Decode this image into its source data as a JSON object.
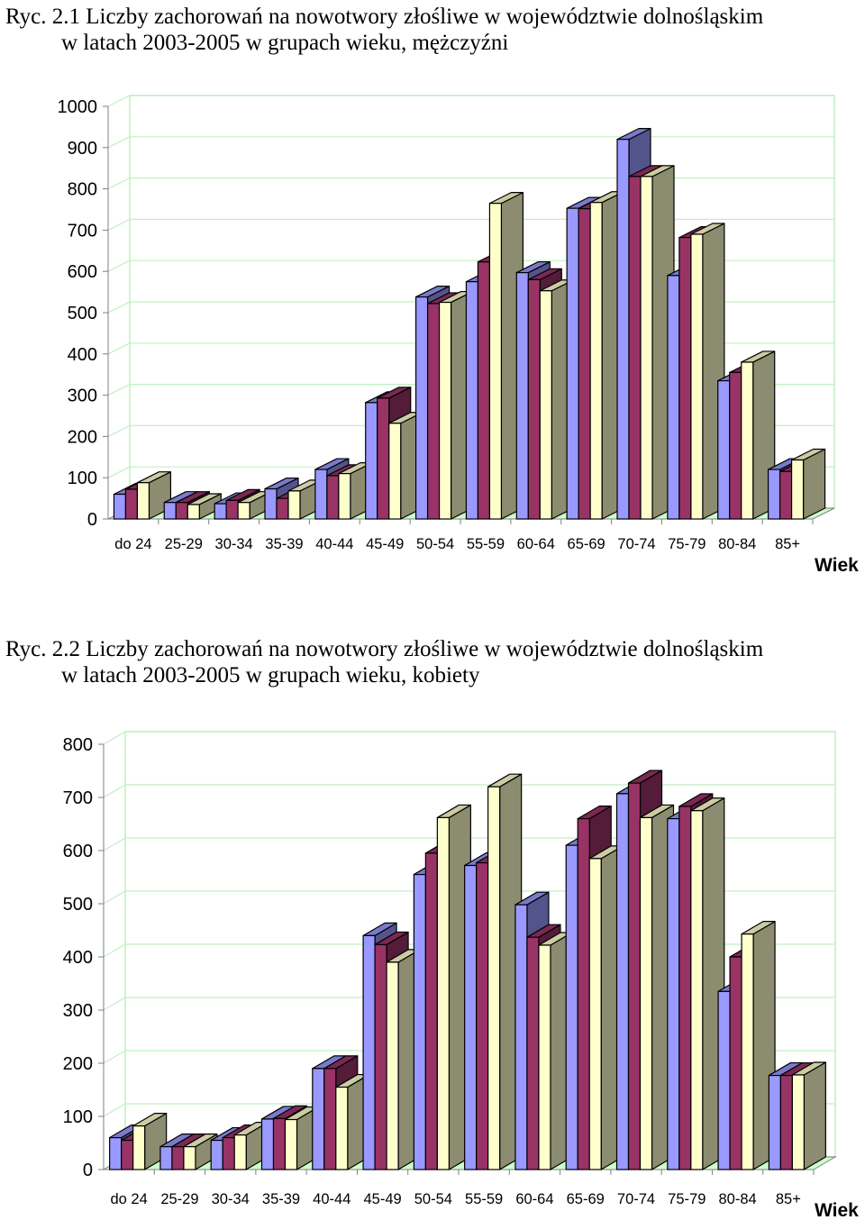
{
  "figures": [
    {
      "caption": {
        "number": "Ryc. 2.1",
        "line1": "Liczby zachorowań na nowotwory złośliwe w województwie dolnośląskim",
        "line2": "w latach 2003-2005 w grupach wieku, mężczyźni"
      }
    },
    {
      "caption": {
        "number": "Ryc. 2.2",
        "line1": "Liczby zachorowań na nowotwory złośliwe w województwie dolnośląskim",
        "line2": "w latach 2003-2005 w grupach wieku, kobiety"
      }
    }
  ],
  "colors": {
    "series": [
      "#9999ff",
      "#993366",
      "#ffffcc"
    ],
    "wall_grid": "#c0f0c0",
    "floor": "#ccffcc"
  },
  "chart_data": [
    {
      "type": "bar",
      "xlabel": "Wiek",
      "ylabel": "",
      "ylim": [
        0,
        1000
      ],
      "yticks": [
        0,
        100,
        200,
        300,
        400,
        500,
        600,
        700,
        800,
        900,
        1000
      ],
      "grid": true,
      "categories": [
        "do 24",
        "25-29",
        "30-34",
        "35-39",
        "40-44",
        "45-49",
        "50-54",
        "55-59",
        "60-64",
        "65-69",
        "70-74",
        "75-79",
        "80-84",
        "85+"
      ],
      "series": [
        {
          "values": [
            60,
            40,
            37,
            73,
            120,
            282,
            538,
            575,
            597,
            753,
            920,
            590,
            335,
            120
          ]
        },
        {
          "values": [
            72,
            40,
            45,
            50,
            105,
            293,
            522,
            623,
            580,
            752,
            830,
            682,
            355,
            115
          ]
        },
        {
          "values": [
            88,
            35,
            40,
            68,
            110,
            232,
            525,
            765,
            553,
            767,
            830,
            690,
            380,
            143
          ]
        }
      ]
    },
    {
      "type": "bar",
      "xlabel": "Wiek",
      "ylabel": "",
      "ylim": [
        0,
        800
      ],
      "yticks": [
        0,
        100,
        200,
        300,
        400,
        500,
        600,
        700,
        800
      ],
      "grid": true,
      "categories": [
        "do 24",
        "25-29",
        "30-34",
        "35-39",
        "40-44",
        "45-49",
        "50-54",
        "55-59",
        "60-64",
        "65-69",
        "70-74",
        "75-79",
        "80-84",
        "85+"
      ],
      "series": [
        {
          "values": [
            60,
            43,
            55,
            95,
            190,
            440,
            555,
            572,
            498,
            610,
            707,
            660,
            335,
            177
          ]
        },
        {
          "values": [
            55,
            43,
            60,
            96,
            190,
            423,
            595,
            577,
            437,
            660,
            727,
            683,
            400,
            177
          ]
        },
        {
          "values": [
            82,
            43,
            65,
            94,
            155,
            390,
            662,
            720,
            422,
            585,
            662,
            675,
            443,
            178
          ]
        }
      ]
    }
  ]
}
